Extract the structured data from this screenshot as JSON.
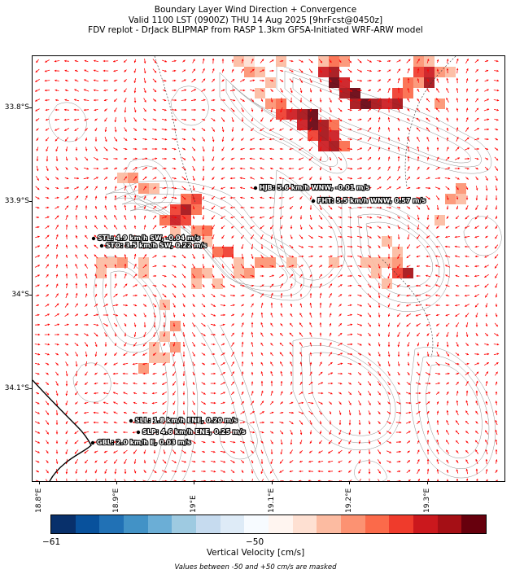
{
  "title": {
    "line1": "Boundary Layer Wind Direction + Convergence",
    "line2": "Valid 1100 LST (0900Z) THU 14 Aug 2025 [9hrFcst@0450z]",
    "line3": "FDV replot - DrJack BLIPMAP from RASP 1.3km GFSA-Initiated WRF-ARW model"
  },
  "axes": {
    "y_labels": [
      "33.8°S",
      "33.9°S",
      "34°S",
      "34.1°S"
    ],
    "x_labels": [
      "18.8°E",
      "18.9°E",
      "19°E",
      "19.1°E",
      "19.2°E",
      "19.3°E"
    ]
  },
  "stations": [
    {
      "id": "hjb",
      "label": "HJB: 5.6 km/h WNW, -0.01 m/s"
    },
    {
      "id": "fht",
      "label": "FHT: 5.5 km/h WNW, 0.57 m/s"
    },
    {
      "id": "stl",
      "label": "STL: 4.9 km/h SW, -0.04 m/s"
    },
    {
      "id": "sto",
      "label": "STO: 3.5 km/h SW, 0.22 m/s"
    },
    {
      "id": "sll",
      "label": "SLL: 1.8 km/h ENE, 0.20 m/s"
    },
    {
      "id": "slp",
      "label": "SLP: 4.6 km/h ENE, 0.25 m/s"
    },
    {
      "id": "gbl",
      "label": "GBL: 2.0 km/h E, 0.03 m/s"
    }
  ],
  "colorbar": {
    "min_label": "−61",
    "mid_label": "−50",
    "title": "Vertical Velocity [cm/s]",
    "note": "Values between -50 and +50 cm/s are masked",
    "colors": [
      "#08306b",
      "#08519c",
      "#2171b5",
      "#4292c6",
      "#6baed6",
      "#9ecae1",
      "#c6dbef",
      "#deebf7",
      "#f7fbff",
      "#fff5f0",
      "#fee0d2",
      "#fcbba1",
      "#fc9272",
      "#fb6a4a",
      "#ef3b2c",
      "#cb181d",
      "#a50f15",
      "#67000d"
    ]
  },
  "colors": {
    "wind_arrow": "#ff0000",
    "contour": "#555555",
    "coastline": "#000000"
  }
}
